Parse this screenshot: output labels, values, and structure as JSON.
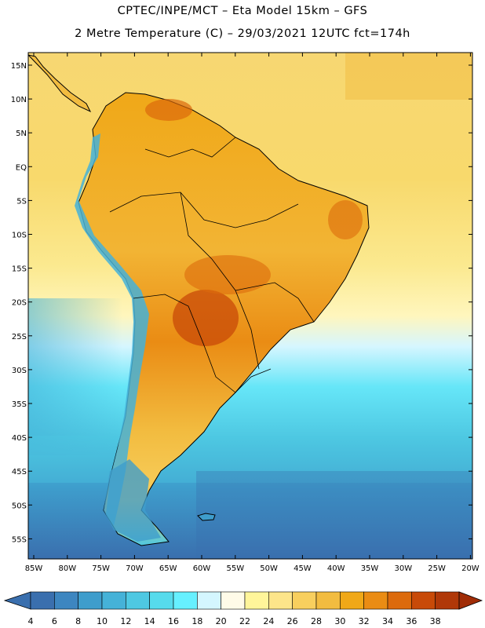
{
  "header": {
    "line1": "CPTEC/INPE/MCT –  Eta Model 15km – GFS",
    "line2": "2 Metre Temperature (C) – 29/03/2021 12UTC fct=174h"
  },
  "map": {
    "lat_labels": [
      "15N",
      "10N",
      "5N",
      "EQ",
      "5S",
      "10S",
      "15S",
      "20S",
      "25S",
      "30S",
      "35S",
      "40S",
      "45S",
      "50S",
      "55S"
    ],
    "lon_labels": [
      "85W",
      "80W",
      "75W",
      "70W",
      "65W",
      "60W",
      "55W",
      "50W",
      "45W",
      "40W",
      "35W",
      "30W",
      "25W",
      "20W"
    ]
  },
  "colorbar": {
    "ticks": [
      "4",
      "6",
      "8",
      "10",
      "12",
      "14",
      "16",
      "18",
      "20",
      "22",
      "24",
      "26",
      "28",
      "30",
      "32",
      "34",
      "36",
      "38"
    ],
    "colors": [
      "#3a6fae",
      "#3d86c0",
      "#3e9dcc",
      "#45b2d8",
      "#4ec8e2",
      "#56dbec",
      "#66f0ff",
      "#d4f6ff",
      "#fffbe8",
      "#fff59a",
      "#fde58a",
      "#f8cf5e",
      "#f2bc40",
      "#f0a818",
      "#ea8c14",
      "#dc6a0c",
      "#c84a08",
      "#b03808"
    ]
  }
}
